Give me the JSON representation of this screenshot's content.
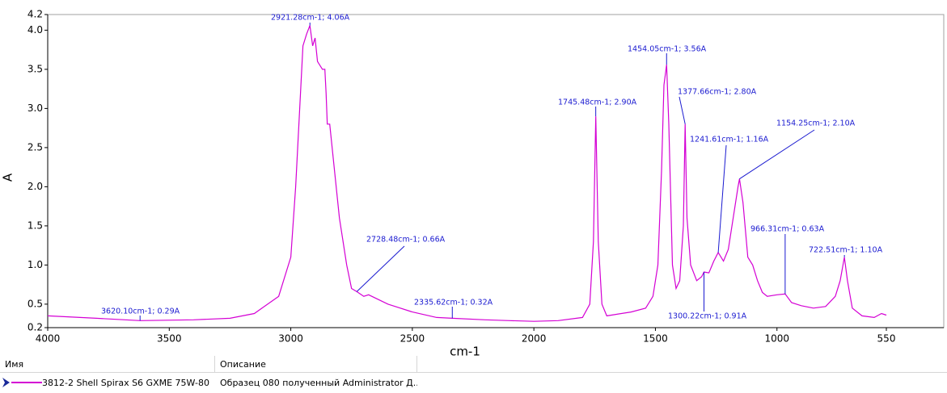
{
  "chart_data": {
    "type": "line",
    "xlabel": "cm-1",
    "ylabel": "A",
    "xlim": [
      4000,
      550
    ],
    "ylim": [
      0.2,
      4.2
    ],
    "xticks": [
      4000,
      3500,
      3000,
      2500,
      2000,
      1500,
      1000,
      550
    ],
    "yticks": [
      0.2,
      0.5,
      {
        "value": 1,
        "label": "1.0"
      },
      1.5,
      {
        "value": 2,
        "label": "2.0"
      },
      2.5,
      {
        "value": 3,
        "label": "3.0"
      },
      3.5,
      {
        "value": 4,
        "label": "4.0"
      },
      4.2
    ],
    "x": [
      4000,
      3800,
      3620.1,
      3400,
      3250,
      3150,
      3050,
      3000,
      2980,
      2960,
      2950,
      2935,
      2921.28,
      2910,
      2900,
      2890,
      2870,
      2860,
      2855,
      2850,
      2840,
      2830,
      2800,
      2770,
      2750,
      2728.48,
      2700,
      2680,
      2600,
      2500,
      2400,
      2335.62,
      2200,
      2100,
      2000,
      1900,
      1800,
      1770,
      1755,
      1745.48,
      1735,
      1720,
      1700,
      1600,
      1540,
      1510,
      1490,
      1475,
      1465,
      1454.05,
      1445,
      1430,
      1415,
      1400,
      1385,
      1377.66,
      1370,
      1355,
      1330,
      1310,
      1300.22,
      1280,
      1260,
      1241.61,
      1220,
      1200,
      1180,
      1160,
      1154.25,
      1140,
      1120,
      1100,
      1080,
      1060,
      1040,
      1000,
      966.31,
      940,
      900,
      850,
      800,
      760,
      740,
      722.51,
      710,
      690,
      650,
      600,
      570,
      550
    ],
    "series": [
      {
        "name": "3812-2 Shell Spirax S6 GXME 75W-80",
        "color": "#d400d4",
        "values": [
          0.35,
          0.32,
          0.29,
          0.3,
          0.32,
          0.38,
          0.6,
          1.1,
          2.0,
          3.2,
          3.8,
          3.95,
          4.06,
          3.8,
          3.9,
          3.6,
          3.5,
          3.5,
          3.2,
          2.8,
          2.8,
          2.5,
          1.6,
          1.0,
          0.7,
          0.66,
          0.6,
          0.62,
          0.5,
          0.4,
          0.33,
          0.32,
          0.3,
          0.29,
          0.28,
          0.29,
          0.33,
          0.5,
          1.3,
          2.9,
          1.3,
          0.5,
          0.35,
          0.4,
          0.45,
          0.6,
          1.0,
          2.2,
          3.3,
          3.56,
          2.8,
          1.0,
          0.7,
          0.8,
          1.5,
          2.8,
          1.6,
          1.0,
          0.8,
          0.85,
          0.91,
          0.9,
          1.05,
          1.16,
          1.05,
          1.2,
          1.6,
          2.0,
          2.1,
          1.8,
          1.1,
          1.0,
          0.8,
          0.65,
          0.6,
          0.62,
          0.63,
          0.52,
          0.48,
          0.45,
          0.47,
          0.6,
          0.8,
          1.1,
          0.8,
          0.45,
          0.35,
          0.33,
          0.38,
          0.36
        ]
      }
    ],
    "annotations": [
      {
        "x": 3620.1,
        "y": 0.29,
        "label": "3620.10cm-1; 0.29A"
      },
      {
        "x": 2921.28,
        "y": 4.06,
        "label": "2921.28cm-1; 4.06A"
      },
      {
        "x": 2728.48,
        "y": 0.66,
        "label": "2728.48cm-1; 0.66A"
      },
      {
        "x": 2335.62,
        "y": 0.32,
        "label": "2335.62cm-1; 0.32A"
      },
      {
        "x": 1745.48,
        "y": 2.9,
        "label": "1745.48cm-1; 2.90A"
      },
      {
        "x": 1454.05,
        "y": 3.56,
        "label": "1454.05cm-1; 3.56A"
      },
      {
        "x": 1377.66,
        "y": 2.8,
        "label": "1377.66cm-1; 2.80A"
      },
      {
        "x": 1300.22,
        "y": 0.91,
        "label": "1300.22cm-1; 0.91A"
      },
      {
        "x": 1241.61,
        "y": 1.16,
        "label": "1241.61cm-1; 1.16A"
      },
      {
        "x": 1154.25,
        "y": 2.1,
        "label": "1154.25cm-1; 2.10A"
      },
      {
        "x": 966.31,
        "y": 0.63,
        "label": "966.31cm-1; 0.63A"
      },
      {
        "x": 722.51,
        "y": 1.1,
        "label": "722.51cm-1; 1.10A"
      }
    ]
  },
  "table": {
    "columns": [
      "Имя",
      "Описание"
    ],
    "rows": [
      [
        "3812-2 Shell Spirax S6 GXME 75W-80",
        "Образец 080 полученный Administrator Д..."
      ]
    ]
  }
}
